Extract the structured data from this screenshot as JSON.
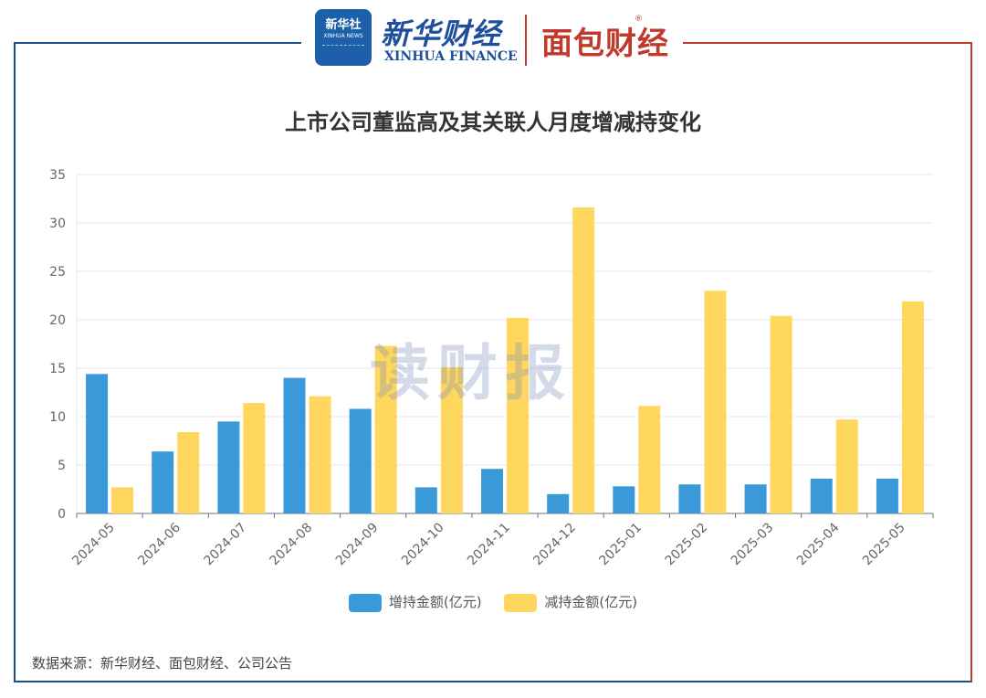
{
  "header": {
    "xinhua_badge_cn": "新华社",
    "xinhua_badge_en": "XINHUA NEWS",
    "xinhua_name": "新华财经",
    "xinhua_en": "XINHUA FINANCE",
    "mianbao_name": "面包财经",
    "mianbao_reg": "®",
    "colors": {
      "left_accent": "#1f4e8c",
      "right_accent": "#c0392b"
    }
  },
  "watermark": "读财报",
  "source": "数据来源：新华财经、面包财经、公司公告",
  "chart_data": {
    "type": "bar",
    "title": "上市公司董监高及其关联人月度增减持变化",
    "categories": [
      "2024-05",
      "2024-06",
      "2024-07",
      "2024-08",
      "2024-09",
      "2024-10",
      "2024-11",
      "2024-12",
      "2025-01",
      "2025-02",
      "2025-03",
      "2025-04",
      "2025-05"
    ],
    "series": [
      {
        "name": "增持金额(亿元)",
        "color": "#3a9ad9",
        "values": [
          14.4,
          6.4,
          9.5,
          14.0,
          10.8,
          2.7,
          4.6,
          2.0,
          2.8,
          3.0,
          3.0,
          3.6,
          3.6
        ]
      },
      {
        "name": "减持金额(亿元)",
        "color": "#ffd75e",
        "values": [
          2.7,
          8.4,
          11.4,
          12.1,
          17.3,
          15.1,
          20.2,
          31.6,
          11.1,
          23.0,
          20.4,
          9.7,
          21.9
        ]
      }
    ],
    "ylim": [
      0,
      35
    ],
    "yticks": [
      0,
      5,
      10,
      15,
      20,
      25,
      30,
      35
    ],
    "xlabel": "",
    "ylabel": "",
    "grid": true,
    "legend_position": "bottom"
  }
}
